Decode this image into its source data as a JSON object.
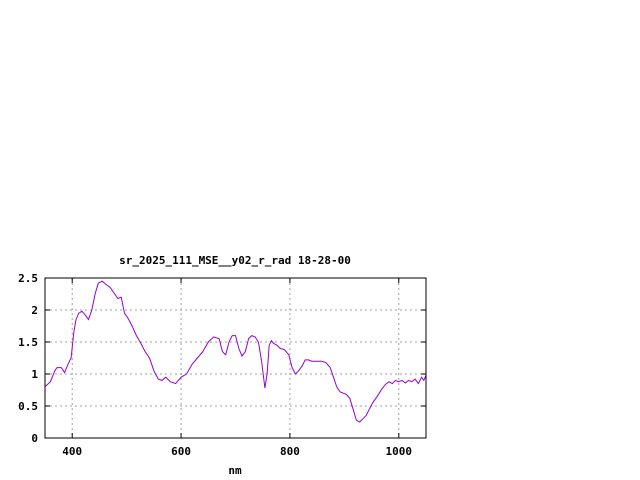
{
  "chart_data": {
    "type": "line",
    "title": "sr_2025_111_MSE__y02_r_rad 18-28-00",
    "xlabel": "nm",
    "ylabel": "",
    "xlim": [
      350,
      1050
    ],
    "ylim": [
      0,
      2.5
    ],
    "grid": true,
    "legend": "none",
    "x_ticks": [
      400,
      600,
      800,
      1000
    ],
    "x_tick_labels": [
      "400",
      "600",
      "800",
      "1000"
    ],
    "y_ticks": [
      0,
      0.5,
      1,
      1.5,
      2,
      2.5
    ],
    "y_tick_labels": [
      "0",
      "0.5",
      "1",
      "1.5",
      "2",
      "2.5"
    ],
    "series": [
      {
        "color": "#9400d3",
        "x": [
          350,
          360,
          368,
          372,
          380,
          386,
          392,
          398,
          403,
          407,
          412,
          418,
          424,
          430,
          436,
          442,
          448,
          455,
          462,
          470,
          478,
          484,
          490,
          496,
          502,
          510,
          518,
          526,
          534,
          542,
          550,
          558,
          565,
          572,
          580,
          590,
          600,
          610,
          620,
          630,
          640,
          650,
          660,
          670,
          676,
          682,
          688,
          694,
          700,
          706,
          712,
          718,
          724,
          730,
          736,
          742,
          748,
          754,
          758,
          762,
          766,
          770,
          776,
          782,
          790,
          798,
          804,
          810,
          816,
          822,
          828,
          834,
          840,
          846,
          852,
          858,
          866,
          874,
          880,
          886,
          892,
          898,
          904,
          910,
          916,
          922,
          928,
          934,
          940,
          946,
          952,
          958,
          964,
          970,
          976,
          982,
          988,
          994,
          1000,
          1006,
          1012,
          1018,
          1024,
          1030,
          1036,
          1042,
          1046,
          1050
        ],
        "y": [
          0.8,
          0.88,
          1.05,
          1.1,
          1.1,
          1.02,
          1.15,
          1.25,
          1.65,
          1.85,
          1.95,
          1.98,
          1.92,
          1.85,
          2.0,
          2.25,
          2.42,
          2.45,
          2.4,
          2.35,
          2.25,
          2.18,
          2.2,
          1.95,
          1.88,
          1.75,
          1.6,
          1.48,
          1.35,
          1.25,
          1.05,
          0.92,
          0.9,
          0.95,
          0.88,
          0.85,
          0.95,
          1.0,
          1.15,
          1.25,
          1.35,
          1.5,
          1.58,
          1.55,
          1.35,
          1.3,
          1.5,
          1.6,
          1.6,
          1.4,
          1.28,
          1.35,
          1.55,
          1.6,
          1.58,
          1.5,
          1.2,
          0.78,
          1.0,
          1.45,
          1.52,
          1.48,
          1.45,
          1.4,
          1.38,
          1.3,
          1.1,
          1.0,
          1.05,
          1.12,
          1.22,
          1.22,
          1.2,
          1.2,
          1.2,
          1.2,
          1.18,
          1.1,
          0.95,
          0.8,
          0.72,
          0.7,
          0.68,
          0.62,
          0.45,
          0.28,
          0.25,
          0.3,
          0.35,
          0.45,
          0.55,
          0.62,
          0.7,
          0.78,
          0.84,
          0.88,
          0.85,
          0.9,
          0.88,
          0.9,
          0.86,
          0.9,
          0.88,
          0.92,
          0.85,
          0.95,
          0.9,
          0.98
        ]
      }
    ]
  }
}
